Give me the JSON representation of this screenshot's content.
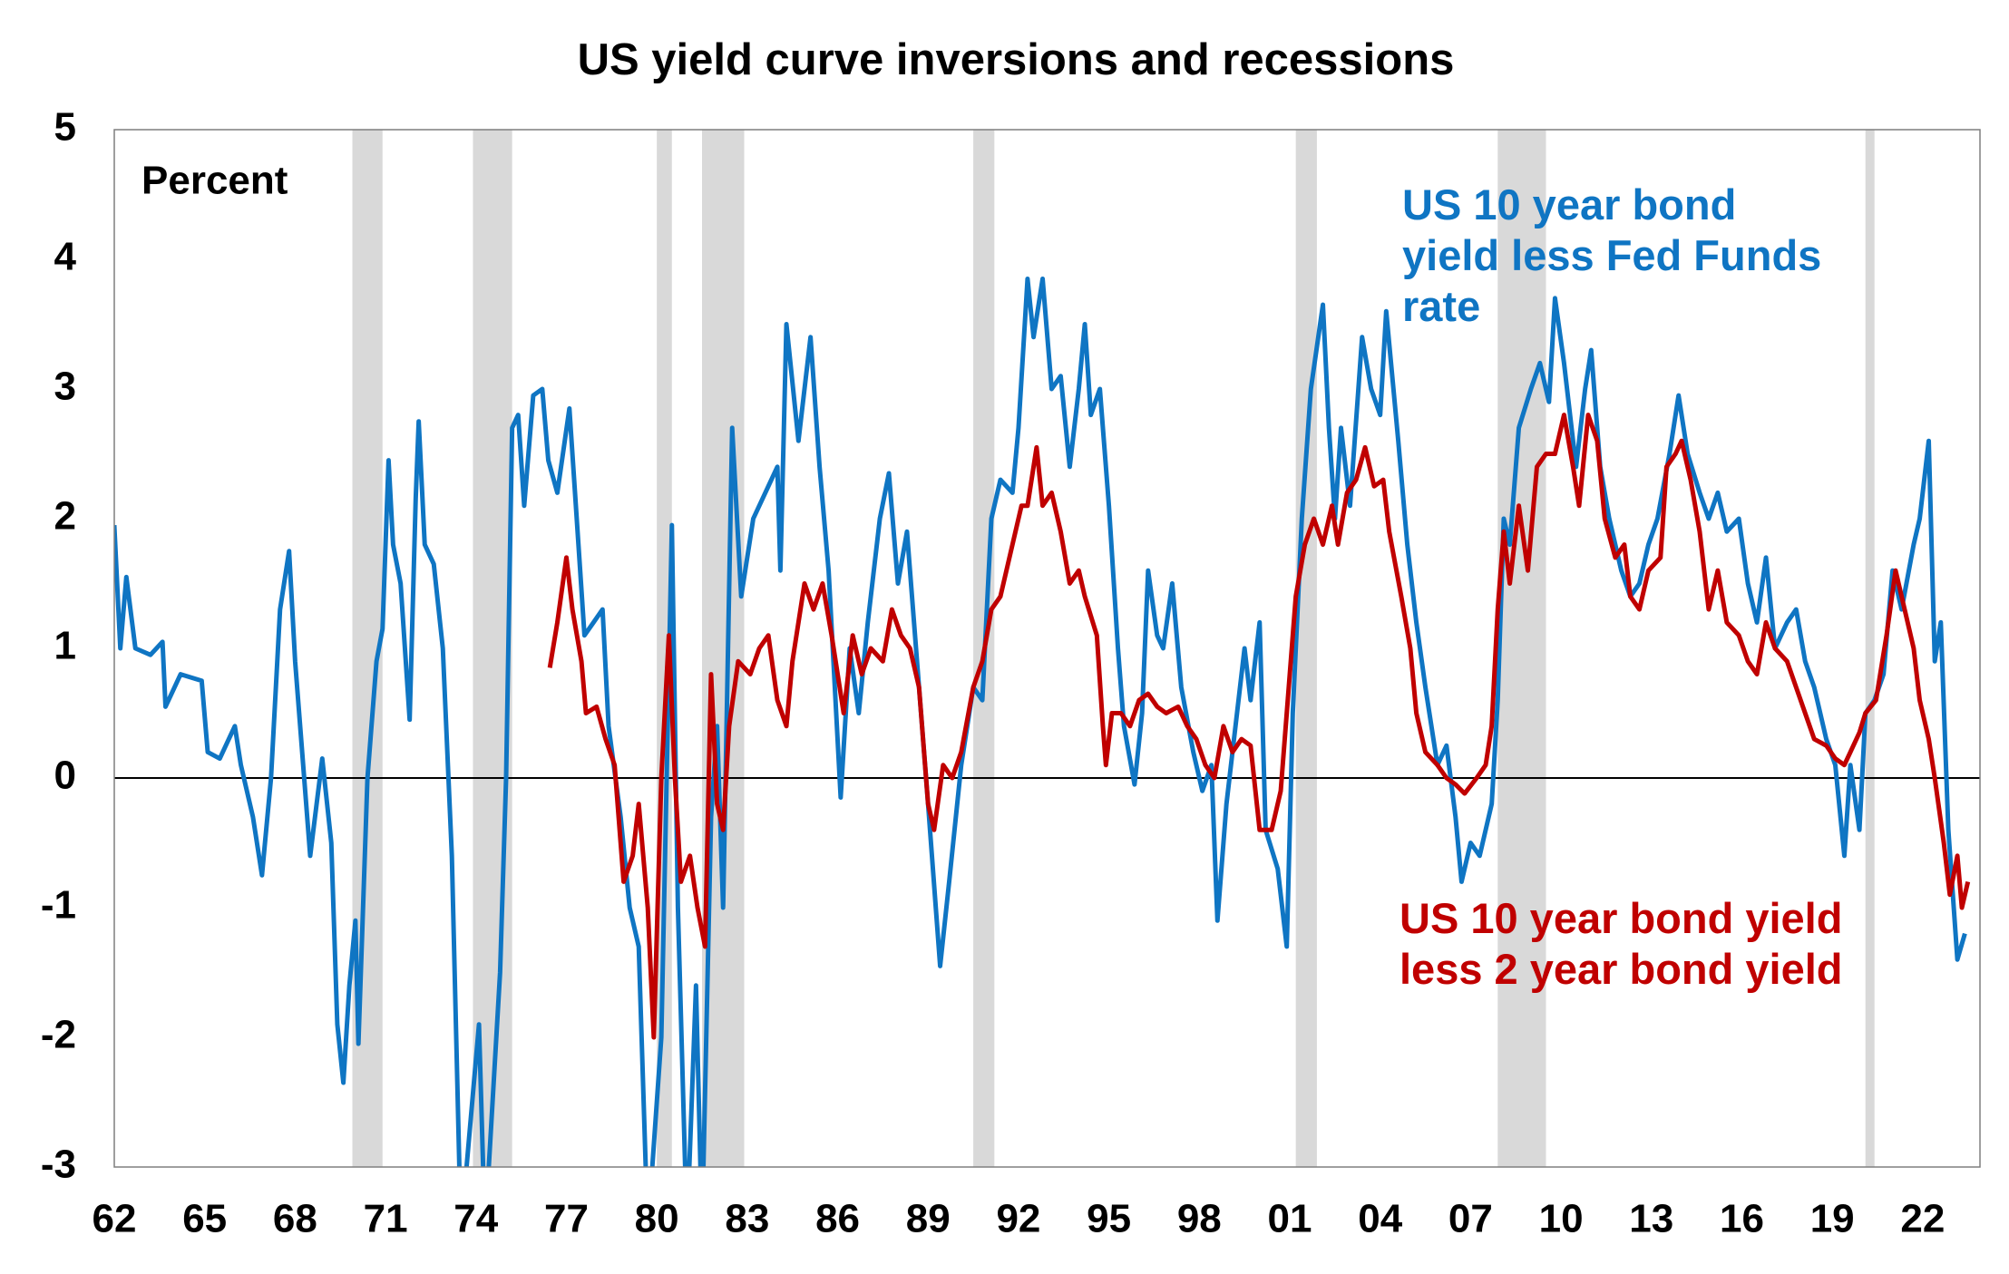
{
  "chart_data": {
    "type": "line",
    "title": "US yield curve inversions and recessions",
    "y_label": "Percent",
    "xlim": [
      1962,
      2023.9
    ],
    "xticks": [
      {
        "value": 1962,
        "label": "62"
      },
      {
        "value": 1965,
        "label": "65"
      },
      {
        "value": 1968,
        "label": "68"
      },
      {
        "value": 1971,
        "label": "71"
      },
      {
        "value": 1974,
        "label": "74"
      },
      {
        "value": 1977,
        "label": "77"
      },
      {
        "value": 1980,
        "label": "80"
      },
      {
        "value": 1983,
        "label": "83"
      },
      {
        "value": 1986,
        "label": "86"
      },
      {
        "value": 1989,
        "label": "89"
      },
      {
        "value": 1992,
        "label": "92"
      },
      {
        "value": 1995,
        "label": "95"
      },
      {
        "value": 1998,
        "label": "98"
      },
      {
        "value": 2001,
        "label": "01"
      },
      {
        "value": 2004,
        "label": "04"
      },
      {
        "value": 2007,
        "label": "07"
      },
      {
        "value": 2010,
        "label": "10"
      },
      {
        "value": 2013,
        "label": "13"
      },
      {
        "value": 2016,
        "label": "16"
      },
      {
        "value": 2019,
        "label": "19"
      },
      {
        "value": 2022,
        "label": "22"
      }
    ],
    "ylim": [
      -3,
      5
    ],
    "yticks": [
      -3,
      -2,
      -1,
      0,
      1,
      2,
      3,
      4,
      5
    ],
    "recession_color": "#d9d9d9",
    "recessions": [
      [
        1969.9,
        1970.9
      ],
      [
        1973.9,
        1975.2
      ],
      [
        1980.0,
        1980.5
      ],
      [
        1981.5,
        1982.9
      ],
      [
        1990.5,
        1991.2
      ],
      [
        2001.2,
        2001.9
      ],
      [
        2007.9,
        2009.5
      ],
      [
        2020.1,
        2020.4
      ]
    ],
    "series": [
      {
        "name": "US 10 year bond yield less Fed Funds rate",
        "color": "#0f75c3",
        "x": [
          1962.0,
          1962.2,
          1962.4,
          1962.7,
          1963.2,
          1963.6,
          1963.7,
          1964.2,
          1964.9,
          1965.1,
          1965.5,
          1966.0,
          1966.2,
          1966.6,
          1966.9,
          1967.2,
          1967.5,
          1967.8,
          1968.0,
          1968.3,
          1968.5,
          1968.9,
          1969.2,
          1969.4,
          1969.6,
          1969.8,
          1970.0,
          1970.1,
          1970.4,
          1970.7,
          1970.9,
          1971.1,
          1971.25,
          1971.5,
          1971.8,
          1972.0,
          1972.1,
          1972.3,
          1972.6,
          1972.9,
          1973.2,
          1973.5,
          1974.1,
          1974.3,
          1974.8,
          1975.0,
          1975.2,
          1975.4,
          1975.6,
          1975.9,
          1976.2,
          1976.4,
          1976.7,
          1977.1,
          1977.4,
          1977.6,
          1977.9,
          1978.2,
          1978.4,
          1978.8,
          1979.1,
          1979.4,
          1979.7,
          1980.15,
          1980.5,
          1980.7,
          1981.0,
          1981.3,
          1981.5,
          1981.8,
          1982.0,
          1982.2,
          1982.5,
          1982.8,
          1983.2,
          1983.6,
          1984.0,
          1984.1,
          1984.3,
          1984.7,
          1985.1,
          1985.4,
          1985.7,
          1986.1,
          1986.4,
          1986.7,
          1987.0,
          1987.4,
          1987.7,
          1988.0,
          1988.3,
          1988.6,
          1989.0,
          1989.4,
          1989.7,
          1990.1,
          1990.5,
          1990.8,
          1991.1,
          1991.4,
          1991.8,
          1992.0,
          1992.3,
          1992.5,
          1992.8,
          1993.1,
          1993.4,
          1993.7,
          1994.0,
          1994.2,
          1994.4,
          1994.7,
          1995.0,
          1995.3,
          1995.5,
          1995.85,
          1996.1,
          1996.3,
          1996.6,
          1996.8,
          1997.1,
          1997.4,
          1997.8,
          1998.1,
          1998.4,
          1998.6,
          1998.9,
          1999.2,
          1999.5,
          1999.7,
          2000.0,
          2000.2,
          2000.6,
          2000.9,
          2001.1,
          2001.4,
          2001.7,
          2002.1,
          2002.3,
          2002.5,
          2002.7,
          2003.0,
          2003.4,
          2003.7,
          2004.0,
          2004.2,
          2004.6,
          2004.9,
          2005.2,
          2005.5,
          2005.9,
          2006.2,
          2006.5,
          2006.7,
          2007.0,
          2007.3,
          2007.7,
          2007.9,
          2008.1,
          2008.3,
          2008.6,
          2009.0,
          2009.3,
          2009.6,
          2009.8,
          2010.1,
          2010.5,
          2010.8,
          2011.0,
          2011.3,
          2011.6,
          2012.0,
          2012.3,
          2012.6,
          2012.9,
          2013.2,
          2013.6,
          2013.9,
          2014.2,
          2014.6,
          2014.9,
          2015.2,
          2015.5,
          2015.9,
          2016.2,
          2016.5,
          2016.8,
          2017.1,
          2017.5,
          2017.8,
          2018.1,
          2018.4,
          2018.8,
          2019.1,
          2019.4,
          2019.6,
          2019.9,
          2020.1,
          2020.4,
          2020.7,
          2021.0,
          2021.3,
          2021.7,
          2021.9,
          2022.2,
          2022.4,
          2022.6,
          2022.85,
          2023.15,
          2023.4
        ],
        "values": [
          1.95,
          1.0,
          1.55,
          1.0,
          0.95,
          1.05,
          0.55,
          0.8,
          0.75,
          0.2,
          0.15,
          0.4,
          0.1,
          -0.3,
          -0.75,
          0.0,
          1.3,
          1.75,
          0.9,
          0.0,
          -0.6,
          0.15,
          -0.5,
          -1.9,
          -2.35,
          -1.6,
          -1.1,
          -2.05,
          0.0,
          0.9,
          1.15,
          2.45,
          1.8,
          1.5,
          0.45,
          2.15,
          2.75,
          1.8,
          1.65,
          1.0,
          -0.6,
          -3.5,
          -1.9,
          -3.5,
          -1.5,
          0.0,
          2.7,
          2.8,
          2.1,
          2.95,
          3.0,
          2.45,
          2.2,
          2.85,
          1.8,
          1.1,
          1.2,
          1.3,
          0.4,
          -0.3,
          -1.0,
          -1.3,
          -3.5,
          -2.0,
          1.95,
          -1.0,
          -3.5,
          -1.6,
          -3.5,
          -0.3,
          0.4,
          -1.0,
          2.7,
          1.4,
          2.0,
          2.2,
          2.4,
          1.6,
          3.5,
          2.6,
          3.4,
          2.4,
          1.6,
          -0.15,
          1.0,
          0.5,
          1.2,
          2.0,
          2.35,
          1.5,
          1.9,
          1.0,
          -0.2,
          -1.45,
          -0.8,
          0.1,
          0.7,
          0.6,
          2.0,
          2.3,
          2.2,
          2.7,
          3.85,
          3.4,
          3.85,
          3.0,
          3.1,
          2.4,
          3.0,
          3.5,
          2.8,
          3.0,
          2.1,
          1.0,
          0.4,
          -0.05,
          0.5,
          1.6,
          1.1,
          1.0,
          1.5,
          0.7,
          0.2,
          -0.1,
          0.1,
          -1.1,
          -0.2,
          0.4,
          1.0,
          0.6,
          1.2,
          -0.4,
          -0.7,
          -1.3,
          0.5,
          2.0,
          3.0,
          3.65,
          2.7,
          2.0,
          2.7,
          2.1,
          3.4,
          3.0,
          2.8,
          3.6,
          2.6,
          1.8,
          1.2,
          0.7,
          0.1,
          0.25,
          -0.3,
          -0.8,
          -0.5,
          -0.6,
          -0.2,
          0.6,
          2.0,
          1.8,
          2.7,
          3.0,
          3.2,
          2.9,
          3.7,
          3.2,
          2.4,
          3.0,
          3.3,
          2.4,
          2.0,
          1.6,
          1.4,
          1.5,
          1.8,
          2.0,
          2.5,
          2.95,
          2.5,
          2.2,
          2.0,
          2.2,
          1.9,
          2.0,
          1.5,
          1.2,
          1.7,
          1.0,
          1.2,
          1.3,
          0.9,
          0.7,
          0.3,
          0.1,
          -0.6,
          0.1,
          -0.4,
          0.5,
          0.6,
          0.8,
          1.6,
          1.3,
          1.8,
          2.0,
          2.6,
          0.9,
          1.2,
          -0.4,
          -1.4,
          -1.2
        ]
      },
      {
        "name": "US 10 year bond yield less 2 year bond yield",
        "color": "#c00000",
        "x": [
          1976.45,
          1976.7,
          1977.0,
          1977.2,
          1977.5,
          1977.65,
          1978.0,
          1978.3,
          1978.6,
          1978.9,
          1979.2,
          1979.4,
          1979.7,
          1979.9,
          1980.15,
          1980.4,
          1980.6,
          1980.8,
          1981.1,
          1981.35,
          1981.6,
          1981.8,
          1982.0,
          1982.2,
          1982.4,
          1982.7,
          1983.1,
          1983.4,
          1983.7,
          1984.0,
          1984.3,
          1984.5,
          1984.9,
          1985.2,
          1985.5,
          1985.8,
          1986.2,
          1986.5,
          1986.8,
          1987.1,
          1987.5,
          1987.8,
          1988.1,
          1988.4,
          1988.7,
          1989.0,
          1989.2,
          1989.5,
          1989.8,
          1990.1,
          1990.5,
          1990.8,
          1991.1,
          1991.4,
          1991.8,
          1992.1,
          1992.3,
          1992.6,
          1992.8,
          1993.1,
          1993.4,
          1993.7,
          1994.0,
          1994.2,
          1994.6,
          1994.8,
          1994.9,
          1995.1,
          1995.4,
          1995.7,
          1996.0,
          1996.3,
          1996.6,
          1996.9,
          1997.3,
          1997.6,
          1997.9,
          1998.2,
          1998.5,
          1998.8,
          1999.1,
          1999.4,
          1999.7,
          2000.0,
          2000.4,
          2000.7,
          2000.9,
          2001.2,
          2001.5,
          2001.8,
          2002.1,
          2002.4,
          2002.6,
          2002.9,
          2003.2,
          2003.5,
          2003.8,
          2004.1,
          2004.3,
          2004.7,
          2005.0,
          2005.2,
          2005.5,
          2005.9,
          2006.2,
          2006.5,
          2006.8,
          2007.2,
          2007.5,
          2007.7,
          2007.9,
          2008.1,
          2008.3,
          2008.6,
          2008.9,
          2009.2,
          2009.5,
          2009.8,
          2010.1,
          2010.4,
          2010.6,
          2010.9,
          2011.2,
          2011.45,
          2011.8,
          2012.1,
          2012.3,
          2012.6,
          2012.9,
          2013.3,
          2013.5,
          2013.8,
          2014.0,
          2014.3,
          2014.6,
          2014.9,
          2015.2,
          2015.5,
          2015.9,
          2016.2,
          2016.5,
          2016.8,
          2017.1,
          2017.5,
          2017.8,
          2018.1,
          2018.4,
          2018.8,
          2019.1,
          2019.4,
          2019.6,
          2019.9,
          2020.1,
          2020.45,
          2020.8,
          2021.1,
          2021.4,
          2021.7,
          2021.9,
          2022.2,
          2022.4,
          2022.7,
          2022.9,
          2023.15,
          2023.3,
          2023.5
        ],
        "values": [
          0.85,
          1.2,
          1.7,
          1.3,
          0.9,
          0.5,
          0.55,
          0.3,
          0.1,
          -0.8,
          -0.6,
          -0.2,
          -1.0,
          -2.0,
          0.0,
          1.1,
          0.0,
          -0.8,
          -0.6,
          -1.0,
          -1.3,
          0.8,
          -0.2,
          -0.4,
          0.4,
          0.9,
          0.8,
          1.0,
          1.1,
          0.6,
          0.4,
          0.9,
          1.5,
          1.3,
          1.5,
          1.1,
          0.5,
          1.1,
          0.8,
          1.0,
          0.9,
          1.3,
          1.1,
          1.0,
          0.7,
          -0.2,
          -0.4,
          0.1,
          0.0,
          0.2,
          0.7,
          0.9,
          1.3,
          1.4,
          1.8,
          2.1,
          2.1,
          2.55,
          2.1,
          2.2,
          1.9,
          1.5,
          1.6,
          1.4,
          1.1,
          0.4,
          0.1,
          0.5,
          0.5,
          0.4,
          0.6,
          0.65,
          0.55,
          0.5,
          0.55,
          0.4,
          0.3,
          0.1,
          0.0,
          0.4,
          0.2,
          0.3,
          0.25,
          -0.4,
          -0.4,
          -0.1,
          0.5,
          1.4,
          1.8,
          2.0,
          1.8,
          2.1,
          1.8,
          2.2,
          2.3,
          2.55,
          2.25,
          2.3,
          1.9,
          1.4,
          1.0,
          0.5,
          0.2,
          0.1,
          0.0,
          -0.05,
          -0.12,
          0.0,
          0.1,
          0.4,
          1.3,
          1.9,
          1.5,
          2.1,
          1.6,
          2.4,
          2.5,
          2.5,
          2.8,
          2.4,
          2.1,
          2.8,
          2.6,
          2.0,
          1.7,
          1.8,
          1.4,
          1.3,
          1.6,
          1.7,
          2.4,
          2.5,
          2.6,
          2.3,
          1.9,
          1.3,
          1.6,
          1.2,
          1.1,
          0.9,
          0.8,
          1.2,
          1.0,
          0.9,
          0.7,
          0.5,
          0.3,
          0.25,
          0.15,
          0.1,
          0.2,
          0.35,
          0.5,
          0.6,
          1.1,
          1.6,
          1.3,
          1.0,
          0.6,
          0.3,
          0.0,
          -0.5,
          -0.9,
          -0.6,
          -1.0,
          -0.8
        ]
      }
    ]
  }
}
